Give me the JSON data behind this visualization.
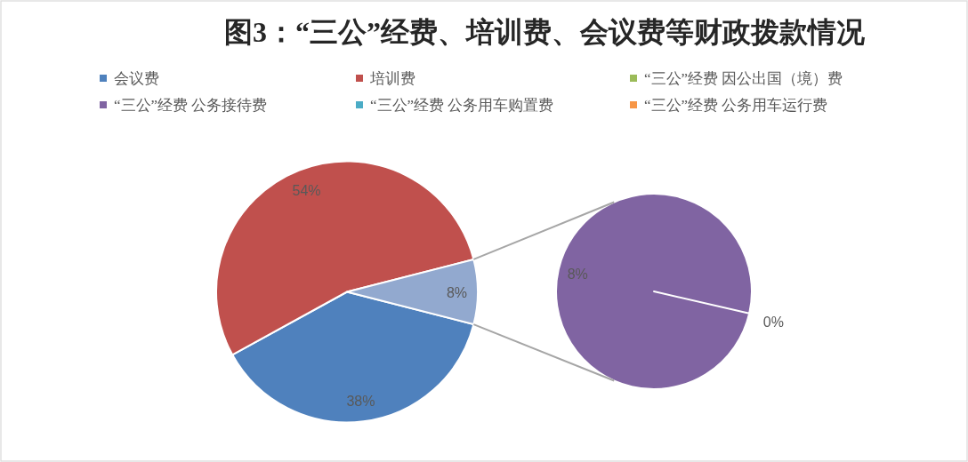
{
  "chart_data": [
    {
      "type": "pie",
      "title": "图3：“三公”经费、培训费、会议费等财政拨款情况",
      "categories": [
        "会议费",
        "培训费",
        null
      ],
      "values": [
        38,
        54,
        8
      ],
      "colors": [
        "#4f81bd",
        "#c0504d",
        "#92a9cf"
      ],
      "value_labels": [
        "38%",
        "54%",
        "8%"
      ],
      "legend": "top"
    },
    {
      "type": "pie",
      "categories": [
        "“三公”经费 因公出国（境）费",
        "“三公”经费 公务接待费",
        "“三公”经费 公务用车购置费",
        "“三公”经费 公务用车运行费"
      ],
      "values": [
        null,
        8,
        null,
        0
      ],
      "colors": [
        "#9bbb59",
        "#8064a2",
        "#4bacc6",
        "#f79646"
      ],
      "value_labels": [
        null,
        "8%",
        null,
        "0%"
      ],
      "legend": "top"
    }
  ]
}
